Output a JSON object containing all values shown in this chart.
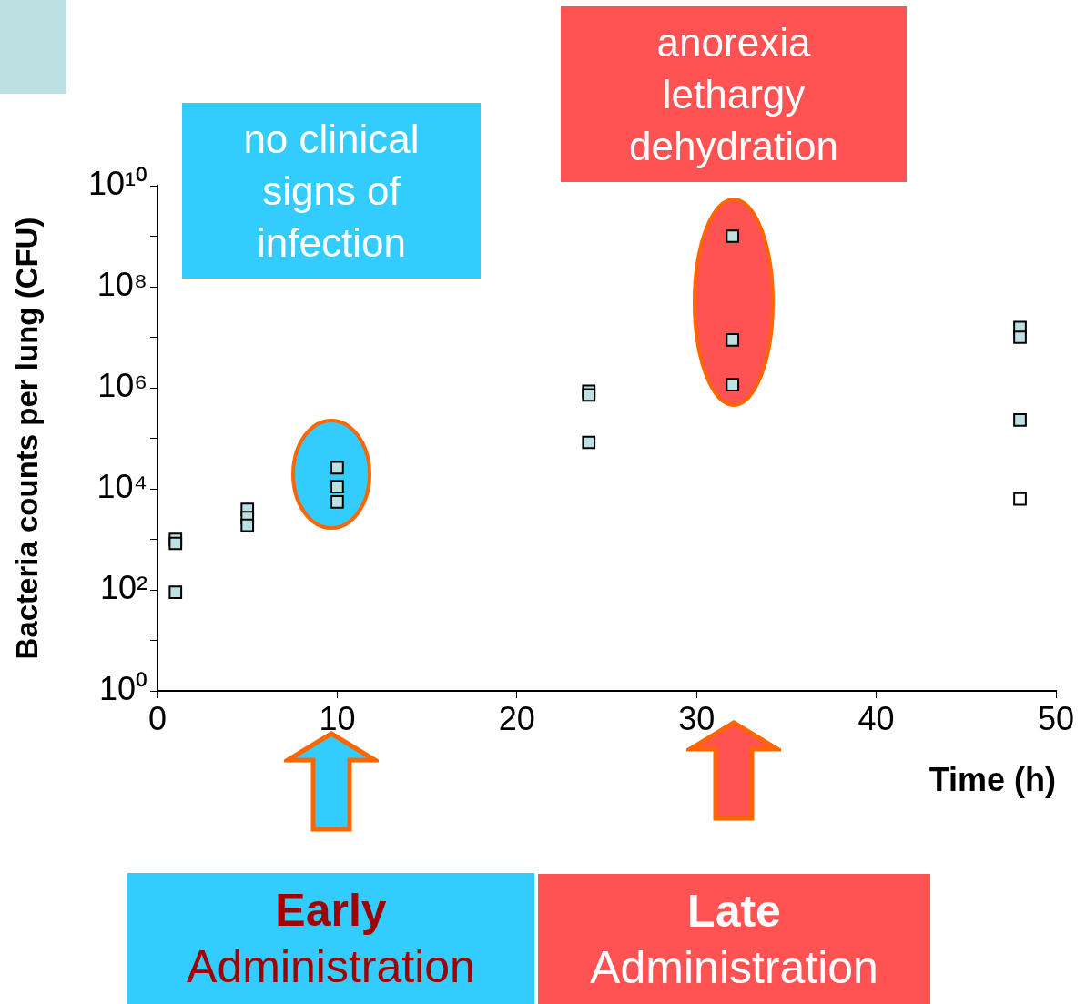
{
  "chart_data": {
    "type": "scatter",
    "xlabel": "Time (h)",
    "ylabel": "Bacteria counts per lung (CFU)",
    "annotations": [
      "no clinical\nsigns of\ninfection",
      "anorexia\nlethargy\ndehydration",
      "Early\nAdministration",
      "Late\nAdministration"
    ],
    "log": "y",
    "marker": "square",
    "xlim": [
      0,
      50
    ],
    "xticks": [
      0,
      10,
      20,
      30,
      40,
      50
    ],
    "ylim": [
      1,
      10000000000
    ],
    "yticks": [
      {
        "value": 1,
        "label": "10⁰"
      },
      {
        "value": 10,
        "label": null
      },
      {
        "value": 100,
        "label": "10²"
      },
      {
        "value": 1000,
        "label": null
      },
      {
        "value": 10000,
        "label": "10⁴"
      },
      {
        "value": 100000,
        "label": null
      },
      {
        "value": 1000000,
        "label": "10⁶"
      },
      {
        "value": 10000000,
        "label": null
      },
      {
        "value": 100000000,
        "label": "10⁸"
      },
      {
        "value": 1000000000,
        "label": null
      },
      {
        "value": 10000000000,
        "label": "10¹⁰"
      }
    ],
    "series": [
      {
        "x": [
          1,
          1,
          1,
          5,
          5,
          5,
          10,
          10,
          10,
          24,
          24,
          24,
          32,
          32,
          32,
          48,
          48,
          48,
          48
        ],
        "values": [
          1000,
          830,
          90,
          3900,
          2700,
          1900,
          26000,
          11000,
          5500,
          850000,
          720000,
          83000,
          1000000000,
          8900000,
          1150000,
          15500000,
          10000000,
          230000,
          6300
        ],
        "colors": [
          "#bde0e3",
          "#bde0e3",
          "#bde0e3",
          "#bde0e3",
          "#bde0e3",
          "#bde0e3",
          "#bde0e3",
          "#bde0e3",
          "#bde0e3",
          "#bde0e3",
          "#bde0e3",
          "#bde0e3",
          "#bde0e3",
          "#bde0e3",
          "#bde0e3",
          "#bde0e3",
          "#bde0e3",
          "#bde0e3",
          "#ffffff"
        ]
      }
    ]
  }
}
